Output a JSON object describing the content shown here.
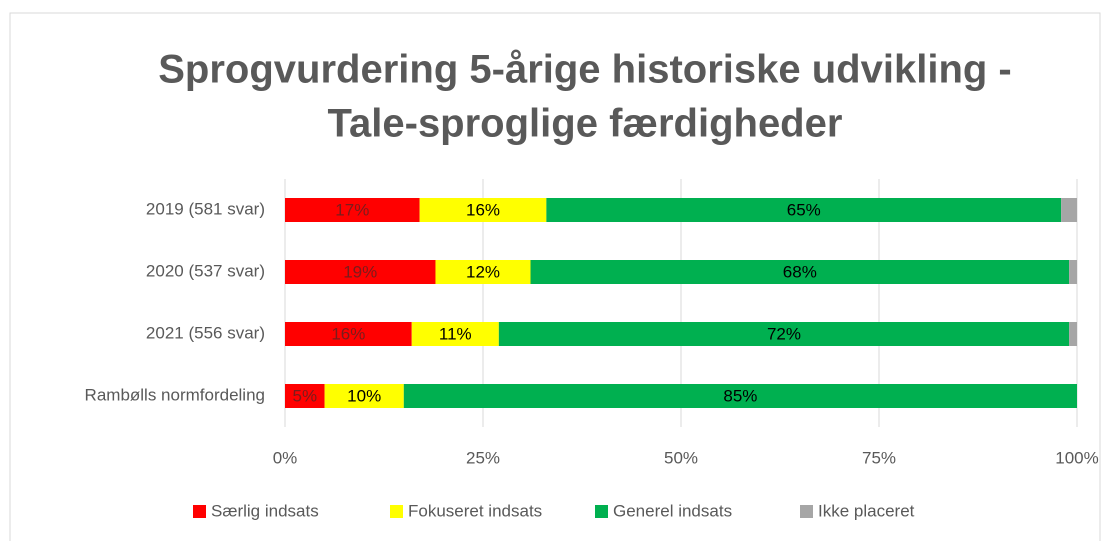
{
  "chart_data": {
    "type": "stacked-barh",
    "title": [
      "Sprogvurdering 5-årige historiske udvikling -",
      "Tale-sproglige færdigheder"
    ],
    "categories": [
      "2019 (581 svar)",
      "2020 (537 svar)",
      "2021 (556 svar)",
      "Rambølls normfordeling"
    ],
    "series": [
      {
        "name": "Særlig indsats",
        "color": "#ff0000",
        "label_color": "#7a1c1c",
        "values": [
          17,
          19,
          16,
          5
        ],
        "value_labels": [
          "17%",
          "19%",
          "16%",
          "5%"
        ]
      },
      {
        "name": "Fokuseret indsats",
        "color": "#ffff00",
        "label_color": "#000000",
        "values": [
          16,
          12,
          11,
          10
        ],
        "value_labels": [
          "16%",
          "12%",
          "11%",
          "10%"
        ]
      },
      {
        "name": "Generel indsats",
        "color": "#00b050",
        "label_color": "#000000",
        "values": [
          65,
          68,
          72,
          85
        ],
        "value_labels": [
          "65%",
          "68%",
          "72%",
          "85%"
        ]
      },
      {
        "name": "Ikke placeret",
        "color": "#a6a6a6",
        "values": [
          2,
          1,
          1,
          0
        ]
      }
    ],
    "xlim": [
      0,
      100
    ],
    "xticks": [
      {
        "value": 0,
        "label": "0%"
      },
      {
        "value": 25,
        "label": "25%"
      },
      {
        "value": 50,
        "label": "50%"
      },
      {
        "value": 75,
        "label": "75%"
      },
      {
        "value": 100,
        "label": "100%"
      }
    ],
    "grid": true,
    "legend": "bottom"
  }
}
